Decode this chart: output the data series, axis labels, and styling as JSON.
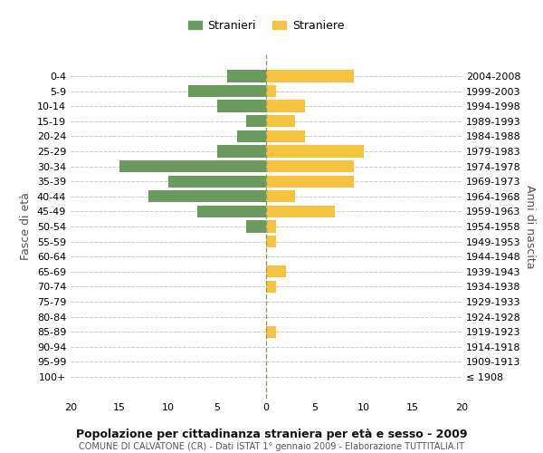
{
  "age_groups": [
    "100+",
    "95-99",
    "90-94",
    "85-89",
    "80-84",
    "75-79",
    "70-74",
    "65-69",
    "60-64",
    "55-59",
    "50-54",
    "45-49",
    "40-44",
    "35-39",
    "30-34",
    "25-29",
    "20-24",
    "15-19",
    "10-14",
    "5-9",
    "0-4"
  ],
  "birth_years": [
    "≤ 1908",
    "1909-1913",
    "1914-1918",
    "1919-1923",
    "1924-1928",
    "1929-1933",
    "1934-1938",
    "1939-1943",
    "1944-1948",
    "1949-1953",
    "1954-1958",
    "1959-1963",
    "1964-1968",
    "1969-1973",
    "1974-1978",
    "1979-1983",
    "1984-1988",
    "1989-1993",
    "1994-1998",
    "1999-2003",
    "2004-2008"
  ],
  "males": [
    0,
    0,
    0,
    0,
    0,
    0,
    0,
    0,
    0,
    0,
    2,
    7,
    12,
    10,
    15,
    5,
    3,
    2,
    5,
    8,
    4
  ],
  "females": [
    0,
    0,
    0,
    1,
    0,
    0,
    1,
    2,
    0,
    1,
    1,
    7,
    3,
    9,
    9,
    10,
    4,
    3,
    4,
    1,
    9
  ],
  "male_color": "#6b9a5e",
  "female_color": "#f5c242",
  "dashed_color": "#999966",
  "grid_color": "#cccccc",
  "bg_color": "#ffffff",
  "title": "Popolazione per cittadinanza straniera per età e sesso - 2009",
  "subtitle": "COMUNE DI CALVATONE (CR) - Dati ISTAT 1° gennaio 2009 - Elaborazione TUTTITALIA.IT",
  "ylabel_left": "Fasce di età",
  "ylabel_right": "Anni di nascita",
  "legend_male": "Stranieri",
  "legend_female": "Straniere",
  "xlim": 20,
  "bar_height": 0.8
}
